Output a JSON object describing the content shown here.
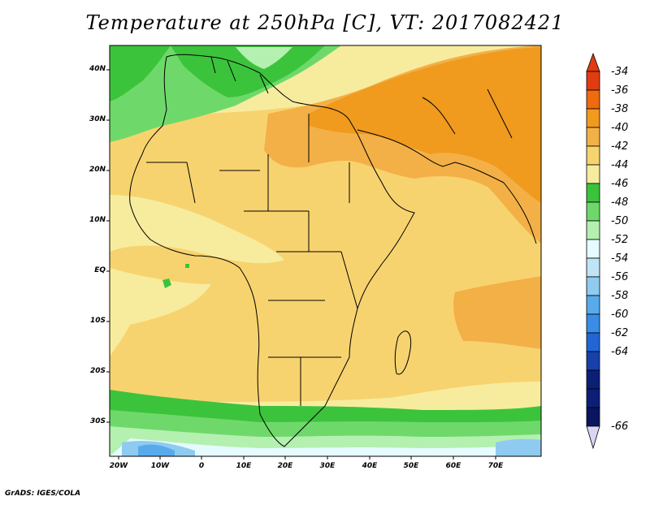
{
  "title": "Temperature at 250hPa [C], VT: 2017082421",
  "credit": "GrADS: IGES/COLA",
  "map": {
    "region": "Africa and Middle East",
    "projection": "lat-lon",
    "lon_range": [
      -25,
      80
    ],
    "lat_range": [
      -37,
      45
    ],
    "lat_ticks": [
      "40N",
      "30N",
      "20N",
      "10N",
      "EQ",
      "10S",
      "20S",
      "30S"
    ],
    "lon_ticks": [
      "20W",
      "10W",
      "0",
      "10E",
      "20E",
      "30E",
      "40E",
      "50E",
      "60E",
      "70E"
    ]
  },
  "colorbar": {
    "labels": [
      "-34",
      "-36",
      "-38",
      "-40",
      "-42",
      "-44",
      "-46",
      "-48",
      "-50",
      "-52",
      "-54",
      "-56",
      "-58",
      "-60",
      "-62",
      "-64",
      "-66"
    ],
    "colors": [
      "#e03c10",
      "#f06a0e",
      "#f09a1e",
      "#f3b046",
      "#f7d36f",
      "#f7ec9e",
      "#3cc33c",
      "#6ed96a",
      "#b4f0b0",
      "#e6fbff",
      "#bfe4f6",
      "#8fcbf1",
      "#58abeb",
      "#3a8de6",
      "#2266d6",
      "#1740aa",
      "#0c1f77"
    ],
    "top_arrow_color": "#e03c10",
    "bottom_arrow_color": "#d9d6f5"
  }
}
